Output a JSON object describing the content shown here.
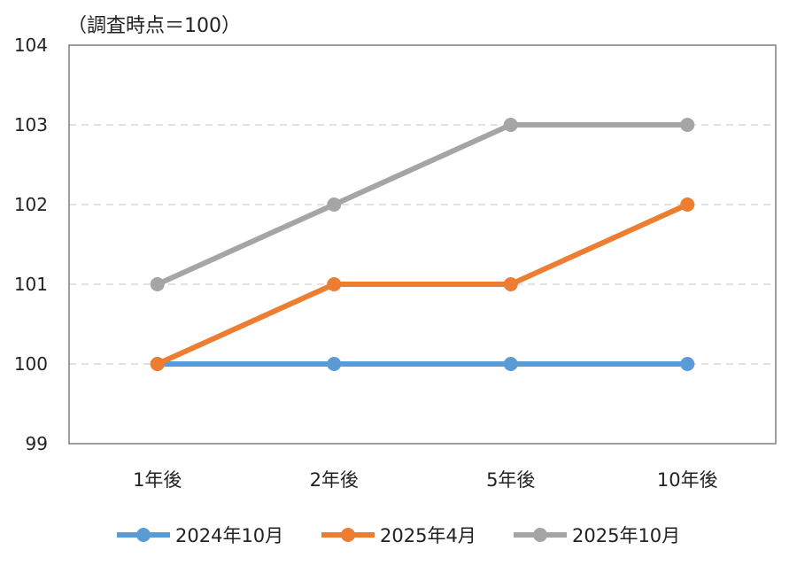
{
  "chart_data": {
    "type": "line",
    "subtitle": "（調査時点＝100）",
    "categories": [
      "1年後",
      "2年後",
      "5年後",
      "10年後"
    ],
    "ylim": [
      99,
      104
    ],
    "yticks": [
      99,
      100,
      101,
      102,
      103,
      104
    ],
    "grid": true,
    "legend_position": "bottom",
    "series": [
      {
        "name": "2024年10月",
        "values": [
          100,
          100,
          100,
          100
        ],
        "color": "#5B9BD5"
      },
      {
        "name": "2025年4月",
        "values": [
          100,
          101,
          101,
          102
        ],
        "color": "#ED7D31"
      },
      {
        "name": "2025年10月",
        "values": [
          101,
          102,
          103,
          103
        ],
        "color": "#A5A5A5"
      }
    ]
  }
}
